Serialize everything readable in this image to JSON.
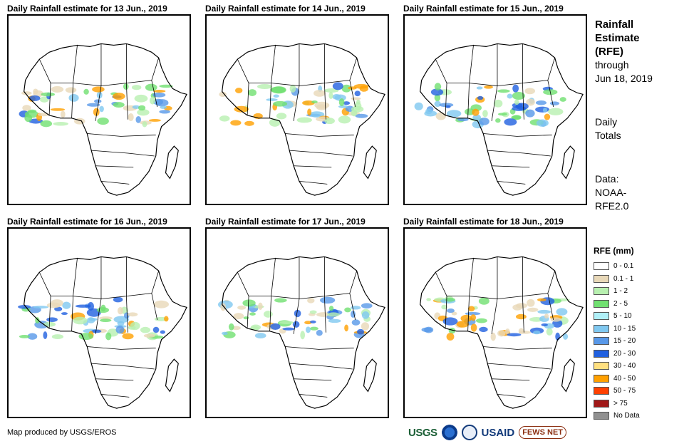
{
  "panels": [
    {
      "title": "Daily Rainfall estimate for 13 Jun., 2019"
    },
    {
      "title": "Daily Rainfall estimate for 14 Jun., 2019"
    },
    {
      "title": "Daily Rainfall estimate for 15 Jun., 2019"
    },
    {
      "title": "Daily Rainfall estimate for 16 Jun., 2019"
    },
    {
      "title": "Daily Rainfall estimate for 17 Jun., 2019"
    },
    {
      "title": "Daily Rainfall estimate for 18 Jun., 2019"
    }
  ],
  "sidebar": {
    "title_line1": "Rainfall",
    "title_line2": "Estimate",
    "title_line3": "(RFE)",
    "through_label": "through",
    "through_date": "Jun 18, 2019",
    "totals_line1": "Daily",
    "totals_line2": "Totals",
    "data_line1": "Data:",
    "data_line2": "NOAA-",
    "data_line3": "RFE2.0"
  },
  "legend": {
    "title": "RFE (mm)",
    "items": [
      {
        "label": "0 - 0.1",
        "color": "#ffffff"
      },
      {
        "label": "0.1 - 1",
        "color": "#e8d8b8"
      },
      {
        "label": "1 - 2",
        "color": "#b8f0b0"
      },
      {
        "label": "2 - 5",
        "color": "#70e070"
      },
      {
        "label": "5 - 10",
        "color": "#b0f0f8"
      },
      {
        "label": "10 - 15",
        "color": "#80c8f0"
      },
      {
        "label": "15 - 20",
        "color": "#5898e8"
      },
      {
        "label": "20 - 30",
        "color": "#2060e0"
      },
      {
        "label": "30 - 40",
        "color": "#ffe080"
      },
      {
        "label": "40 - 50",
        "color": "#ffa000"
      },
      {
        "label": "50 - 75",
        "color": "#ff4000"
      },
      {
        "label": "> 75",
        "color": "#a01818"
      },
      {
        "label": "No Data",
        "color": "#909090"
      }
    ]
  },
  "footer": {
    "text": "Map produced by USGS/EROS"
  },
  "logos": {
    "usgs": "USGS",
    "usaid": "USAID",
    "fews": "FEWS NET"
  }
}
